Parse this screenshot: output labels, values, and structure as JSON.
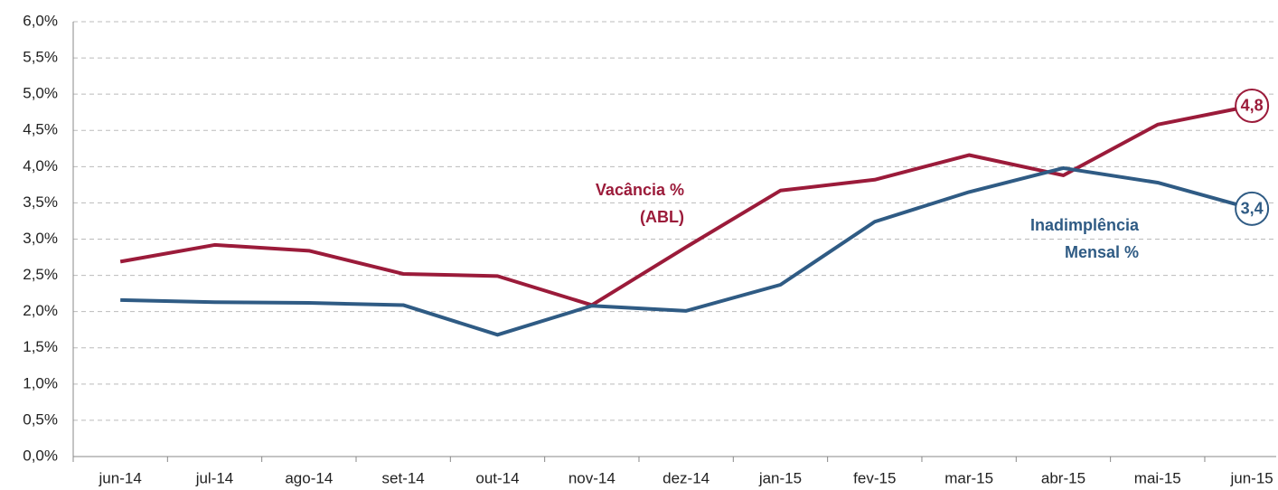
{
  "chart_data": {
    "type": "line",
    "categories": [
      "jun-14",
      "jul-14",
      "ago-14",
      "set-14",
      "out-14",
      "nov-14",
      "dez-14",
      "jan-15",
      "fev-15",
      "mar-15",
      "abr-15",
      "mai-15",
      "jun-15"
    ],
    "series": [
      {
        "label": [
          "Vacância %",
          "(ABL)"
        ],
        "color": "#9b1b3a",
        "values": [
          2.69,
          2.92,
          2.84,
          2.52,
          2.49,
          2.09,
          2.89,
          3.67,
          3.82,
          4.16,
          3.88,
          4.58,
          4.84
        ],
        "value_labels": [
          null,
          null,
          null,
          null,
          null,
          null,
          null,
          null,
          null,
          null,
          null,
          null,
          "4,8"
        ]
      },
      {
        "label": [
          "Inadimplência",
          "Mensal %"
        ],
        "color": "#2f5b84",
        "values": [
          2.16,
          2.13,
          2.12,
          2.09,
          1.68,
          2.08,
          2.01,
          2.37,
          3.24,
          3.65,
          3.98,
          3.78,
          3.42
        ],
        "value_labels": [
          null,
          null,
          null,
          null,
          null,
          null,
          null,
          null,
          null,
          null,
          null,
          null,
          "3,4"
        ]
      }
    ],
    "ylim": [
      0,
      6
    ],
    "yticks": [
      {
        "value": 0,
        "label": "0,0%"
      },
      {
        "value": 0.5,
        "label": "0,5%"
      },
      {
        "value": 1,
        "label": "1,0%"
      },
      {
        "value": 1.5,
        "label": "1,5%"
      },
      {
        "value": 2,
        "label": "2,0%"
      },
      {
        "value": 2.5,
        "label": "2,5%"
      },
      {
        "value": 3,
        "label": "3,0%"
      },
      {
        "value": 3.5,
        "label": "3,5%"
      },
      {
        "value": 4,
        "label": "4,0%"
      },
      {
        "value": 4.5,
        "label": "4,5%"
      },
      {
        "value": 5,
        "label": "5,0%"
      },
      {
        "value": 5.5,
        "label": "5,5%"
      },
      {
        "value": 6,
        "label": "6,0%"
      }
    ],
    "grid": true
  }
}
